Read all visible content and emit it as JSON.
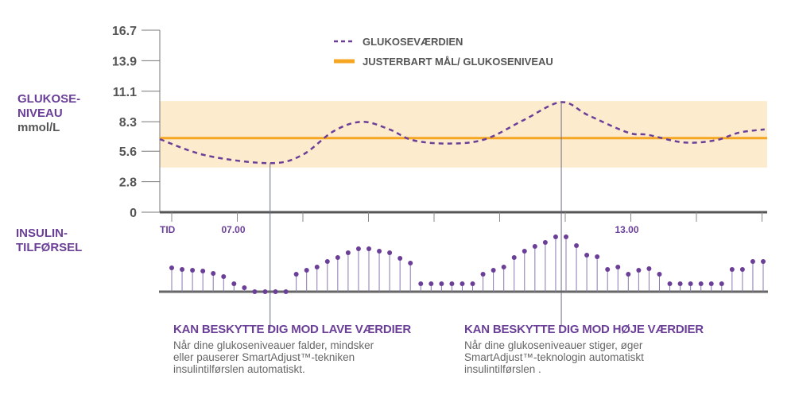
{
  "labels": {
    "glucose_line1": "GLUKOSE-",
    "glucose_line2": "NIVEAU",
    "glucose_unit": "mmol/L",
    "insulin_line1": "INSULIN-",
    "insulin_line2": "TILFØRSEL"
  },
  "colors": {
    "purple": "#6b3f98",
    "orange": "#f5a623",
    "band": "#fdebcd",
    "axis": "#555555",
    "text_gray": "#666666"
  },
  "chart_data": [
    {
      "type": "line",
      "ylabel": "GLUKOSE-NIVEAU mmol/L",
      "ylim": [
        0,
        16.7
      ],
      "yticks": [
        "0",
        "2.8",
        "5.6",
        "8.3",
        "11.1",
        "13.9",
        "16.7"
      ],
      "xlabel": "TID",
      "xlim": [
        5.82,
        15.1
      ],
      "xtick_labels": [
        {
          "hour": 7,
          "label": "07.00"
        },
        {
          "hour": 13,
          "label": "13.00"
        }
      ],
      "x_axis_title": "TID",
      "legend": {
        "placement": "top-right",
        "entries": [
          "GLUKOSEVÆRDIEN",
          "JUSTERBART MÅL/ GLUKOSENIVEAU"
        ]
      },
      "target_range": [
        4.1,
        10.2
      ],
      "series": [
        {
          "name": "GLUKOSEVÆRDIEN",
          "style": "dashed",
          "color": "#6b3f98",
          "x": [
            5.82,
            6.53,
            7.5,
            7.99,
            8.47,
            8.9,
            9.32,
            9.68,
            10.23,
            10.78,
            11.38,
            11.94,
            12.35,
            12.96,
            13.26,
            13.81,
            14.29,
            14.65,
            15.04
          ],
          "y": [
            6.7,
            5.2,
            4.5,
            5.25,
            7.44,
            8.3,
            7.6,
            6.6,
            6.3,
            6.7,
            8.5,
            10.1,
            8.9,
            7.3,
            7.1,
            6.4,
            6.6,
            7.3,
            7.6
          ]
        },
        {
          "name": "JUSTERBART MÅL/ GLUKOSENIVEAU",
          "style": "solid",
          "color": "#f5a623",
          "constant": 6.8
        }
      ],
      "markers": [
        {
          "x": 7.5
        },
        {
          "x": 11.94
        }
      ]
    },
    {
      "type": "stem",
      "ylabel": "INSULIN-TILFØRSEL",
      "values": [
        30,
        28,
        27,
        26,
        23,
        19,
        10,
        5,
        0,
        0,
        0,
        0,
        22,
        27,
        31,
        38,
        43,
        49,
        54,
        54,
        51,
        49,
        42,
        36,
        10,
        10,
        10,
        10,
        10,
        10,
        22,
        27,
        31,
        43,
        51,
        57,
        62,
        69,
        69,
        58,
        46,
        44,
        28,
        31,
        22,
        27,
        29,
        22,
        10,
        10,
        10,
        10,
        10,
        10,
        28,
        28,
        38,
        38
      ]
    }
  ],
  "captions": [
    {
      "title": "KAN BESKYTTE DIG MOD LAVE VÆRDIER",
      "lines": [
        "Når dine glukoseniveauer falder, mindsker",
        "eller pauserer SmartAdjust™-tekniken",
        "insulintilførslen automatiskt."
      ]
    },
    {
      "title": "KAN BESKYTTE DIG MOD HØJE VÆRDIER",
      "lines": [
        "Når dine glukoseniveauer stiger, øger",
        "SmartAdjust™-teknologin automatiskt",
        "insulintilførslen ."
      ]
    }
  ]
}
